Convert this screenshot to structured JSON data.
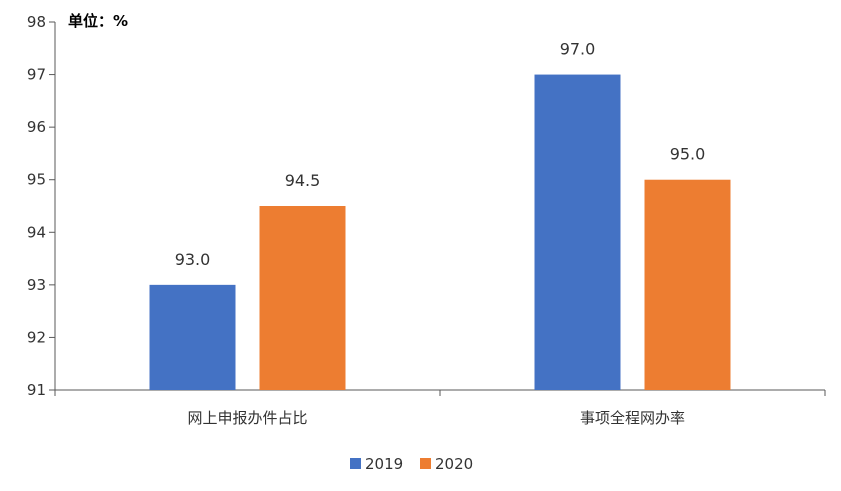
{
  "chart_data": {
    "type": "bar",
    "unit_label": "单位：%",
    "categories": [
      "网上申报办件占比",
      "事项全程网办率"
    ],
    "series": [
      {
        "name": "2019",
        "color": "#4472C4",
        "values": [
          93.0,
          97.0
        ],
        "labels": [
          "93.0",
          "97.0"
        ]
      },
      {
        "name": "2020",
        "color": "#ED7D31",
        "values": [
          94.5,
          95.0
        ],
        "labels": [
          "94.5",
          "95.0"
        ]
      }
    ],
    "yticks": [
      "91",
      "92",
      "93",
      "94",
      "95",
      "96",
      "97",
      "98"
    ],
    "ylim": [
      91,
      98
    ],
    "grid": false,
    "legend_position": "bottom"
  }
}
